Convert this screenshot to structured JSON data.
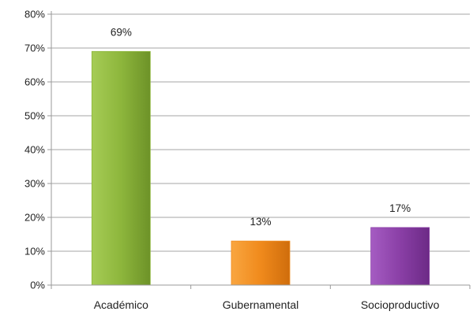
{
  "chart_data": {
    "type": "bar",
    "title": "",
    "xlabel": "",
    "ylabel": "",
    "categories": [
      "Académico",
      "Gubernamental",
      "Socioproductivo"
    ],
    "values": [
      69,
      13,
      17
    ],
    "data_labels": [
      "69%",
      "13%",
      "17%"
    ],
    "ylim": [
      0,
      80
    ],
    "y_ticks": [
      "0%",
      "10%",
      "20%",
      "30%",
      "40%",
      "50%",
      "60%",
      "70%",
      "80%"
    ],
    "grid": true,
    "legend": "none",
    "colors": [
      "#8db63c",
      "#f08a1c",
      "#8a3fa6"
    ]
  }
}
